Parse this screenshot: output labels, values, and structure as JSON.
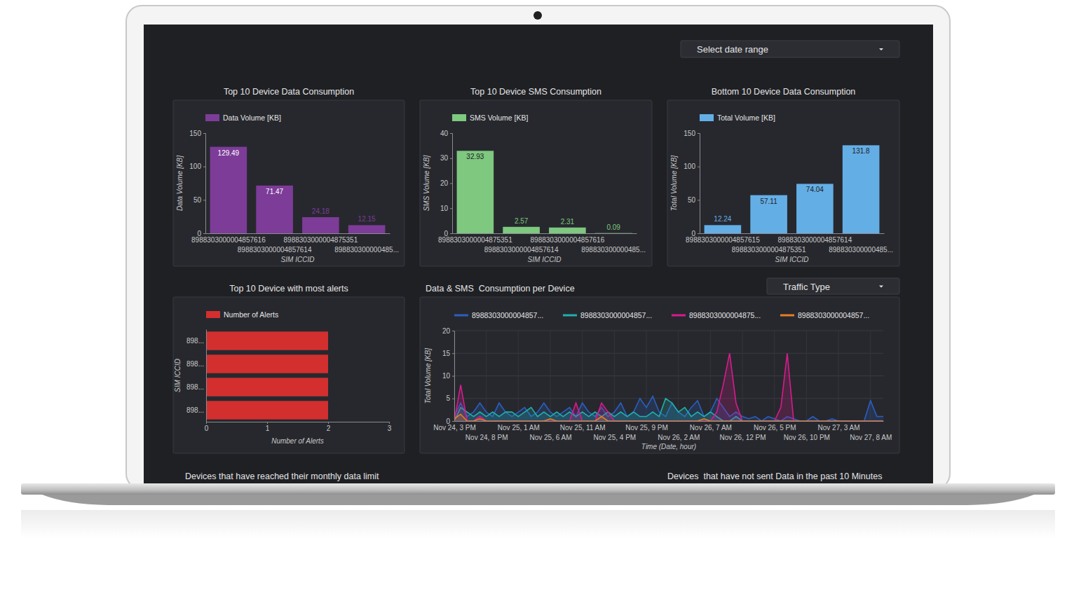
{
  "page": {
    "date_range_select": "Select date range",
    "traffic_type_select": "Traffic Type",
    "footer_titles": [
      "Devices that have reached their monthly data limit",
      "Devices  that have not sent Data in the past 10 Minutes"
    ]
  },
  "chart_data": [
    {
      "type": "bar",
      "title": "Top 10 Device Data Consumption",
      "categories": [
        "8988303000004857616",
        "8988303000004857614",
        "8988303000004875351",
        "898830300000485..."
      ],
      "series": [
        {
          "name": "Data Volume [KB]",
          "color": "#7d3c98",
          "values": [
            129.49,
            71.47,
            24.18,
            12.15
          ]
        }
      ],
      "xlabel": "SIM ICCID",
      "ylabel": "Data Volume [KB]",
      "ylim": [
        0,
        150
      ],
      "yticks": [
        0,
        50,
        100,
        150
      ],
      "grid": false,
      "legend": "top-left",
      "data_labels": true
    },
    {
      "type": "bar",
      "title": "Top 10 Device SMS Consumption",
      "categories": [
        "8988303000004875351",
        "8988303000004857614",
        "8988303000004857616",
        "898830300000485..."
      ],
      "series": [
        {
          "name": "SMS Volume [KB]",
          "color": "#7ec87f",
          "values": [
            32.93,
            2.57,
            2.31,
            0.09
          ]
        }
      ],
      "xlabel": "SIM ICCID",
      "ylabel": "SMS Volume [KB]",
      "ylim": [
        0,
        40
      ],
      "yticks": [
        0,
        10,
        20,
        30,
        40
      ],
      "grid": false,
      "legend": "top-left",
      "data_labels": true
    },
    {
      "type": "bar",
      "title": "Bottom 10 Device Data Consumption",
      "categories": [
        "8988303000004857615",
        "8988303000004875351",
        "8988303000004857614",
        "898830300000485..."
      ],
      "series": [
        {
          "name": "Total Volume [KB]",
          "color": "#64aee6",
          "values": [
            12.24,
            57.11,
            74.04,
            131.8
          ]
        }
      ],
      "xlabel": "SIM ICCID",
      "ylabel": "Total Volume [KB]",
      "ylim": [
        0,
        150
      ],
      "yticks": [
        0,
        50,
        100,
        150
      ],
      "grid": false,
      "legend": "top-left",
      "data_labels": true
    },
    {
      "type": "bar",
      "orientation": "horizontal",
      "title": "Top 10 Device with most alerts",
      "categories": [
        "898...",
        "898...",
        "898...",
        "898..."
      ],
      "series": [
        {
          "name": "Number of Alerts",
          "color": "#d32f2f",
          "values": [
            2,
            2,
            2,
            2
          ]
        }
      ],
      "xlabel": "Number of Alerts",
      "ylabel": "SIM ICCID",
      "xlim": [
        0,
        3
      ],
      "xticks": [
        0,
        1,
        2,
        3
      ],
      "grid": false,
      "legend": "top-left"
    },
    {
      "type": "line",
      "title": "Data & SMS  Consumption per Device",
      "categories": [
        "Nov 24, 3 PM",
        null,
        null,
        null,
        null,
        "Nov 24, 8 PM",
        null,
        null,
        null,
        null,
        "Nov 25, 1 AM",
        null,
        null,
        null,
        null,
        "Nov 25, 6 AM",
        null,
        null,
        null,
        null,
        "Nov 25, 11 AM",
        null,
        null,
        null,
        null,
        "Nov 25, 4 PM",
        null,
        null,
        null,
        null,
        "Nov 25, 9 PM",
        null,
        null,
        null,
        null,
        "Nov 26, 2 AM",
        null,
        null,
        null,
        null,
        "Nov 26, 7 AM",
        null,
        null,
        null,
        null,
        "Nov 26, 12 PM",
        null,
        null,
        null,
        null,
        "Nov 26, 5 PM",
        null,
        null,
        null,
        null,
        "Nov 26, 10 PM",
        null,
        null,
        null,
        null,
        "Nov 27, 3 AM",
        null,
        null,
        null,
        null,
        "Nov 27, 8 AM",
        null,
        null
      ],
      "series": [
        {
          "name": "8988303000004857...",
          "color": "#2b5fc0",
          "values": [
            1,
            4,
            1,
            2,
            4,
            2,
            1,
            4,
            2,
            1,
            2,
            3,
            1,
            2,
            4,
            2,
            1,
            2,
            3,
            1,
            4,
            2,
            1,
            3,
            1,
            2,
            4,
            1,
            2,
            5,
            3,
            5.5,
            2,
            1,
            4,
            2,
            1,
            3,
            4.5,
            1,
            2,
            5,
            3,
            1,
            2,
            1,
            0.5,
            1,
            0,
            1,
            0.5,
            0,
            1,
            0.5,
            0,
            0,
            1,
            0,
            0,
            0.5,
            0,
            0,
            0,
            0,
            0,
            4.5,
            1,
            1
          ]
        },
        {
          "name": "8988303000004857...",
          "color": "#1fb0ad",
          "values": [
            0,
            3,
            2,
            1,
            2,
            1,
            2,
            1,
            2,
            2,
            1,
            2,
            3,
            1,
            2,
            1,
            2,
            1,
            2,
            1,
            2,
            1,
            2,
            1,
            2,
            1,
            2,
            1,
            2,
            1,
            1,
            2,
            1,
            5,
            4,
            2,
            3,
            1,
            2,
            1,
            2,
            1,
            0,
            0,
            1,
            0,
            0,
            0,
            0,
            0,
            0,
            0,
            0,
            0,
            0,
            0,
            0,
            0,
            0,
            0,
            0,
            0,
            0,
            0,
            0,
            0,
            0,
            0
          ]
        },
        {
          "name": "8988303000004875...",
          "color": "#d81b8c",
          "values": [
            0,
            8,
            0,
            0,
            1,
            0,
            0,
            0,
            0,
            0,
            0,
            0,
            0,
            0,
            0,
            0,
            0,
            0,
            0,
            4,
            0,
            0,
            0,
            4,
            2,
            0,
            0,
            0,
            0,
            0,
            0,
            0,
            0,
            0,
            0,
            0,
            0,
            0,
            0,
            0,
            0,
            2,
            8,
            15,
            4,
            0,
            0,
            0,
            0,
            0,
            0,
            3,
            15,
            0,
            0,
            0,
            0,
            0,
            0,
            0,
            0,
            0,
            0,
            0,
            0,
            0,
            0,
            0
          ]
        },
        {
          "name": "8988303000004857...",
          "color": "#e67e22",
          "values": [
            0.5,
            1.5,
            0,
            0,
            0.5,
            0,
            0,
            0,
            0,
            0,
            0,
            0,
            0,
            0,
            0,
            0.5,
            0,
            0,
            0,
            0,
            0,
            0,
            0,
            1,
            0,
            0,
            0,
            0,
            0,
            0,
            0,
            0,
            0,
            0,
            0,
            0,
            0,
            0,
            0,
            0.5,
            0,
            0,
            0,
            0,
            0,
            0,
            0,
            0,
            0,
            0,
            0,
            0,
            0,
            0,
            0,
            0,
            0,
            0,
            0,
            0,
            0,
            0,
            0,
            0,
            0,
            0,
            0,
            0
          ]
        }
      ],
      "xlabel": "Time (Date, hour)",
      "ylabel": "Total Volume [KB]",
      "ylim": [
        0,
        20
      ],
      "yticks": [
        0,
        5,
        10,
        15,
        20
      ],
      "grid": true,
      "legend": "top-left"
    }
  ]
}
